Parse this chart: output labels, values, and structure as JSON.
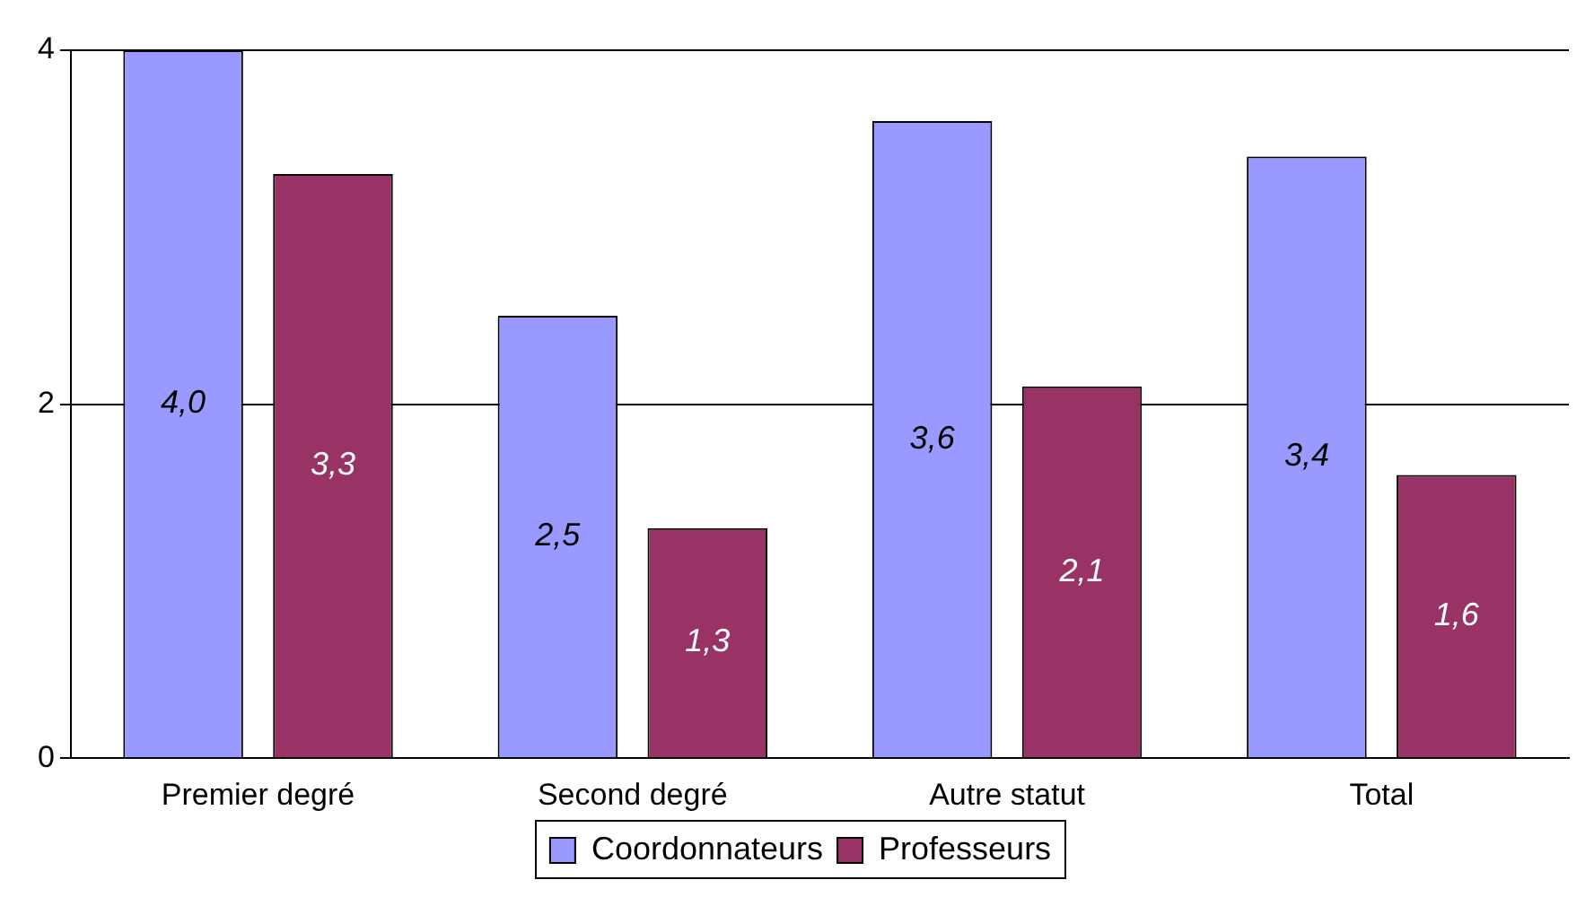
{
  "chart_data": {
    "type": "bar",
    "categories": [
      "Premier degré",
      "Second degré",
      "Autre statut",
      "Total"
    ],
    "series": [
      {
        "name": "Coordonnateurs",
        "color": "#9999ff",
        "values": [
          4.0,
          2.5,
          3.6,
          3.4
        ],
        "value_labels": [
          "4,0",
          "2,5",
          "3,6",
          "3,4"
        ]
      },
      {
        "name": "Professeurs",
        "color": "#993366",
        "values": [
          3.3,
          1.3,
          2.1,
          1.6
        ],
        "value_labels": [
          "3,3",
          "1,3",
          "2,1",
          "1,6"
        ]
      }
    ],
    "ylim": [
      0,
      4
    ],
    "yticks": [
      0,
      2,
      4
    ],
    "grid": "y",
    "legend": "bottom"
  }
}
